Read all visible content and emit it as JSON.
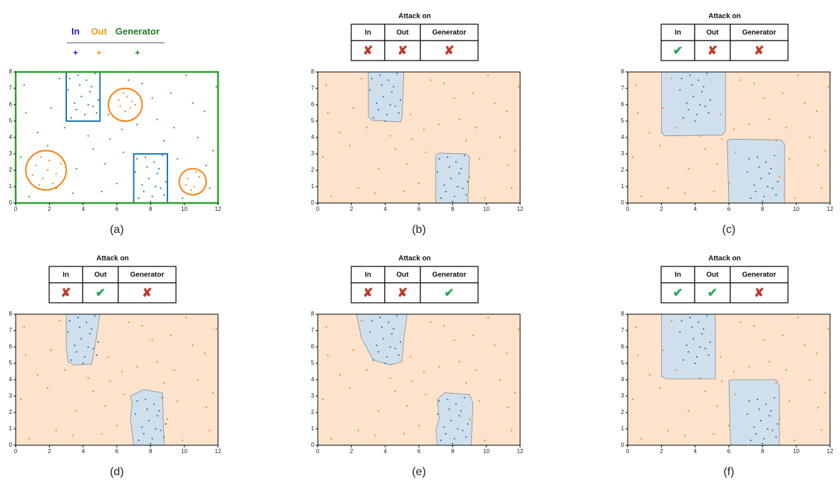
{
  "axes": {
    "xlim": [
      0,
      12
    ],
    "ylim": [
      0,
      8
    ],
    "xticks": [
      0,
      2,
      4,
      6,
      8,
      10,
      12
    ],
    "yticks": [
      0,
      1,
      2,
      3,
      4,
      5,
      6,
      7,
      8
    ]
  },
  "colors": {
    "in": "#1f77b4",
    "out": "#ff7f0e",
    "generator": "#2ca02c",
    "region_in": "#cfe0ec",
    "region_out": "#fde3cb",
    "mark_true": "#2ea55a",
    "mark_false": "#c0392b"
  },
  "legend": [
    {
      "name": "In",
      "color": "#2020c0",
      "marker": "+"
    },
    {
      "name": "Out",
      "color": "#f39c12",
      "marker": "+"
    },
    {
      "name": "Generator",
      "color": "#1e7e1e",
      "marker": "+"
    }
  ],
  "points": {
    "in": [
      [
        3.2,
        7.6
      ],
      [
        3.5,
        6.1
      ],
      [
        3.8,
        7.2
      ],
      [
        4.1,
        5.4
      ],
      [
        4.4,
        6.8
      ],
      [
        4.7,
        7.9
      ],
      [
        3.3,
        5.2
      ],
      [
        3.9,
        6.5
      ],
      [
        4.6,
        5.9
      ],
      [
        4.2,
        7.5
      ],
      [
        3.6,
        5.7
      ],
      [
        4.9,
        6.3
      ],
      [
        3.1,
        6.9
      ],
      [
        4.0,
        5.0
      ],
      [
        4.5,
        7.1
      ],
      [
        3.7,
        7.8
      ],
      [
        4.3,
        6.0
      ],
      [
        4.8,
        5.5
      ],
      [
        7.2,
        2.7
      ],
      [
        7.5,
        1.1
      ],
      [
        7.8,
        2.2
      ],
      [
        8.1,
        0.4
      ],
      [
        8.4,
        1.8
      ],
      [
        8.7,
        2.9
      ],
      [
        7.3,
        0.3
      ],
      [
        7.9,
        1.5
      ],
      [
        8.6,
        0.9
      ],
      [
        8.2,
        2.5
      ],
      [
        7.6,
        0.7
      ],
      [
        8.9,
        1.3
      ],
      [
        7.1,
        1.9
      ],
      [
        8.0,
        0.1
      ],
      [
        8.5,
        2.1
      ],
      [
        7.7,
        2.8
      ],
      [
        8.3,
        1.0
      ],
      [
        8.8,
        0.5
      ]
    ],
    "out": [
      [
        6.1,
        6.3
      ],
      [
        6.5,
        5.6
      ],
      [
        6.9,
        6.2
      ],
      [
        6.4,
        6.7
      ],
      [
        6.8,
        5.8
      ],
      [
        6.2,
        5.9
      ],
      [
        6.6,
        6.5
      ],
      [
        7.1,
        6.0
      ],
      [
        1.2,
        2.3
      ],
      [
        1.6,
        1.5
      ],
      [
        2.0,
        2.6
      ],
      [
        2.4,
        1.8
      ],
      [
        1.5,
        2.8
      ],
      [
        2.2,
        1.2
      ],
      [
        1.0,
        1.7
      ],
      [
        1.9,
        2.0
      ],
      [
        2.7,
        2.4
      ],
      [
        1.4,
        1.1
      ],
      [
        10.2,
        1.5
      ],
      [
        10.6,
        1.0
      ],
      [
        10.9,
        1.6
      ],
      [
        10.4,
        0.8
      ],
      [
        10.7,
        1.9
      ],
      [
        10.1,
        1.1
      ]
    ],
    "generator": [
      [
        0.5,
        7.2
      ],
      [
        1.3,
        4.3
      ],
      [
        2.1,
        5.8
      ],
      [
        0.8,
        0.4
      ],
      [
        2.6,
        7.6
      ],
      [
        5.6,
        3.9
      ],
      [
        6.0,
        1.2
      ],
      [
        5.3,
        2.4
      ],
      [
        4.6,
        3.3
      ],
      [
        3.4,
        0.6
      ],
      [
        2.9,
        4.6
      ],
      [
        6.3,
        4.5
      ],
      [
        7.5,
        7.3
      ],
      [
        8.4,
        5.1
      ],
      [
        9.2,
        6.7
      ],
      [
        10.1,
        7.8
      ],
      [
        11.2,
        5.6
      ],
      [
        11.7,
        3.2
      ],
      [
        10.8,
        4.0
      ],
      [
        9.6,
        2.7
      ],
      [
        9.9,
        0.3
      ],
      [
        11.5,
        0.9
      ],
      [
        8.8,
        3.8
      ],
      [
        7.2,
        4.8
      ],
      [
        5.5,
        5.4
      ],
      [
        1.9,
        3.5
      ],
      [
        0.3,
        2.8
      ],
      [
        3.6,
        2.1
      ],
      [
        4.3,
        4.1
      ],
      [
        6.7,
        7.5
      ],
      [
        8.1,
        6.4
      ],
      [
        9.4,
        4.6
      ],
      [
        10.5,
        6.1
      ],
      [
        11.9,
        7.1
      ],
      [
        0.6,
        5.5
      ],
      [
        2.4,
        0.9
      ],
      [
        5.1,
        0.7
      ],
      [
        6.4,
        3.1
      ],
      [
        9.0,
        1.6
      ],
      [
        11.3,
        2.3
      ]
    ]
  },
  "panel_a": {
    "caption": "(a)",
    "rects": [
      [
        3,
        5,
        5,
        8
      ],
      [
        7,
        9,
        0,
        3
      ]
    ],
    "circles": [
      [
        6.5,
        6,
        1
      ],
      [
        1.8,
        2,
        1.2
      ],
      [
        10.5,
        1.3,
        0.8
      ]
    ]
  },
  "table_title": "Attack on",
  "table_headers": [
    "In",
    "Out",
    "Generator"
  ],
  "mark_true": "✔",
  "mark_false": "✘",
  "panels": [
    {
      "caption": "(b)",
      "attack": [
        false,
        false,
        false
      ],
      "regions": [
        [
          [
            3,
            8
          ],
          [
            3,
            5.3
          ],
          [
            3.2,
            5.05
          ],
          [
            4.9,
            4.95
          ],
          [
            5,
            5.2
          ],
          [
            5.1,
            8
          ]
        ],
        [
          [
            7,
            0
          ],
          [
            7,
            2.9
          ],
          [
            7.2,
            3.05
          ],
          [
            8.8,
            3
          ],
          [
            9,
            2.8
          ],
          [
            8.9,
            0
          ]
        ]
      ]
    },
    {
      "caption": "(c)",
      "attack": [
        true,
        false,
        false
      ],
      "regions": [
        [
          [
            2,
            8
          ],
          [
            2,
            4.3
          ],
          [
            2.2,
            4.1
          ],
          [
            5.6,
            4.15
          ],
          [
            5.8,
            4.4
          ],
          [
            5.8,
            8
          ]
        ],
        [
          [
            6,
            0
          ],
          [
            5.9,
            3.8
          ],
          [
            6.1,
            3.9
          ],
          [
            9.1,
            3.85
          ],
          [
            9.3,
            3.6
          ],
          [
            9.3,
            0
          ]
        ]
      ]
    },
    {
      "caption": "(d)",
      "attack": [
        false,
        true,
        false
      ],
      "regions": [
        [
          [
            3,
            8
          ],
          [
            3,
            6
          ],
          [
            3.1,
            5.1
          ],
          [
            3.5,
            4.9
          ],
          [
            4.5,
            4.95
          ],
          [
            4.7,
            6
          ],
          [
            5,
            8
          ]
        ],
        [
          [
            7,
            0
          ],
          [
            6.8,
            1.6
          ],
          [
            6.9,
            2.6
          ],
          [
            6.8,
            3.0
          ],
          [
            7.6,
            3.4
          ],
          [
            8.7,
            3.2
          ],
          [
            8.8,
            0
          ]
        ]
      ]
    },
    {
      "caption": "(e)",
      "attack": [
        false,
        false,
        true
      ],
      "regions": [
        [
          [
            2.3,
            8
          ],
          [
            2.6,
            6.5
          ],
          [
            3.3,
            5.2
          ],
          [
            4.3,
            4.9
          ],
          [
            5.0,
            5.1
          ],
          [
            5.1,
            6.5
          ],
          [
            5.3,
            8
          ]
        ],
        [
          [
            7.1,
            0
          ],
          [
            7.0,
            1.0
          ],
          [
            7.2,
            1.6
          ],
          [
            7.1,
            2.8
          ],
          [
            7.5,
            3.2
          ],
          [
            9.0,
            3.1
          ],
          [
            9.2,
            2.6
          ],
          [
            9.1,
            0
          ]
        ]
      ]
    },
    {
      "caption": "(f)",
      "attack": [
        true,
        true,
        false
      ],
      "regions": [
        [
          [
            2,
            8
          ],
          [
            2,
            4.2
          ],
          [
            2.3,
            4.05
          ],
          [
            5.2,
            4.05
          ],
          [
            5.2,
            8
          ]
        ],
        [
          [
            6.1,
            0
          ],
          [
            6,
            3.95
          ],
          [
            6.3,
            4.0
          ],
          [
            8.8,
            4.0
          ],
          [
            9.0,
            3.6
          ],
          [
            9.0,
            0
          ]
        ]
      ]
    }
  ]
}
